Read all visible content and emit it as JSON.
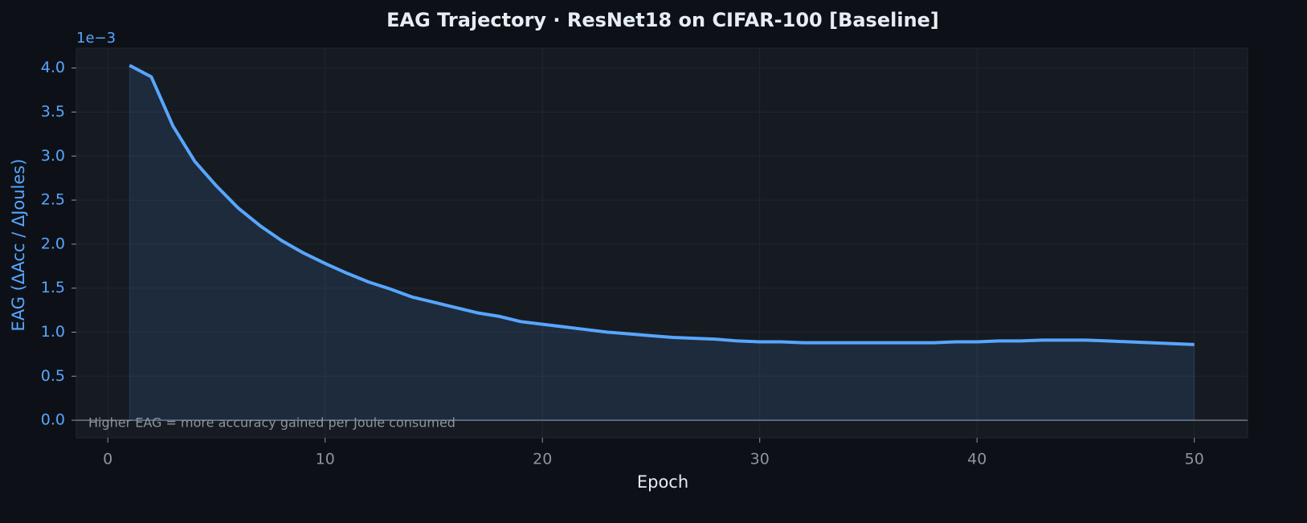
{
  "chart_data": {
    "type": "line",
    "title": "EAG Trajectory  ·  ResNet18 on CIFAR-100  [Baseline]",
    "x_label": "Epoch",
    "y_label": "EAG  (ΔAcc / ΔJoules)",
    "y_offset_label": "1e−3",
    "annotation": "Higher EAG = more accuracy gained per Joule consumed",
    "x": [
      1,
      2,
      3,
      4,
      5,
      6,
      7,
      8,
      9,
      10,
      11,
      12,
      13,
      14,
      15,
      16,
      17,
      18,
      19,
      20,
      21,
      22,
      23,
      24,
      25,
      26,
      27,
      28,
      29,
      30,
      31,
      32,
      33,
      34,
      35,
      36,
      37,
      38,
      39,
      40,
      41,
      42,
      43,
      44,
      45,
      46,
      47,
      48,
      49,
      50
    ],
    "series": [
      {
        "color": "#58a6ff",
        "values": [
          4.03,
          3.9,
          3.34,
          2.94,
          2.66,
          2.41,
          2.21,
          2.04,
          1.9,
          1.78,
          1.67,
          1.57,
          1.49,
          1.4,
          1.34,
          1.28,
          1.22,
          1.18,
          1.12,
          1.09,
          1.06,
          1.03,
          1.0,
          0.98,
          0.96,
          0.94,
          0.93,
          0.92,
          0.9,
          0.89,
          0.89,
          0.88,
          0.88,
          0.88,
          0.88,
          0.88,
          0.88,
          0.88,
          0.89,
          0.89,
          0.9,
          0.9,
          0.91,
          0.91,
          0.91,
          0.9,
          0.89,
          0.88,
          0.87,
          0.86
        ]
      }
    ],
    "xlim": [
      -1.45,
      52.45
    ],
    "ylim": [
      -0.2,
      4.225
    ],
    "xticks": [
      0,
      10,
      20,
      30,
      40,
      50
    ],
    "yticks": [
      {
        "value": 0,
        "label": "0.0"
      },
      0.5,
      {
        "value": 1,
        "label": "1.0"
      },
      1.5,
      {
        "value": 2,
        "label": "2.0"
      },
      2.5,
      {
        "value": 3,
        "label": "3.0"
      },
      3.5,
      {
        "value": 4,
        "label": "4.0"
      }
    ],
    "grid": true,
    "fill": true
  }
}
